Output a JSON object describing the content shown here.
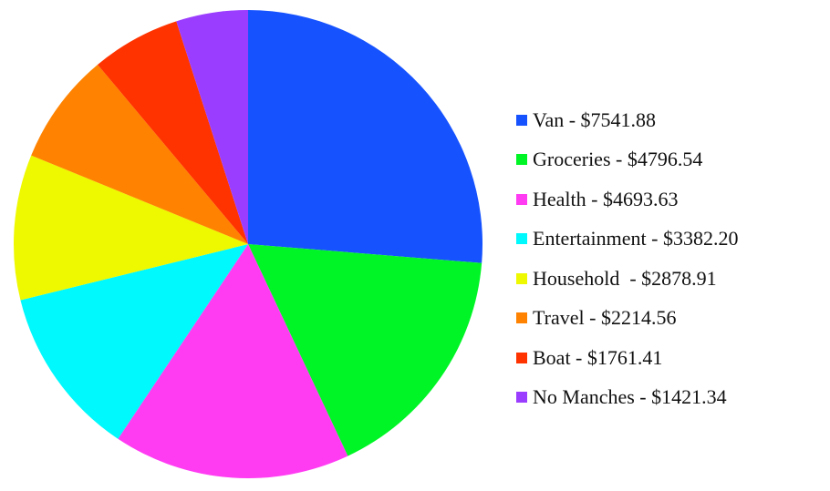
{
  "chart_data": {
    "type": "pie",
    "title": "",
    "start": "12 o'clock",
    "direction": "clockwise",
    "legend_position": "right",
    "slices": [
      {
        "label": "Van - $7541.88",
        "name": "Van",
        "value": 7541.88,
        "color": "#1653ff"
      },
      {
        "label": "Groceries - $4796.54",
        "name": "Groceries",
        "value": 4796.54,
        "color": "#00f526"
      },
      {
        "label": "Health - $4693.63",
        "name": "Health",
        "value": 4693.63,
        "color": "#ff3cf2"
      },
      {
        "label": "Entertainment - $3382.20",
        "name": "Entertainment",
        "value": 3382.2,
        "color": "#00f9fc"
      },
      {
        "label": "Household  - $2878.91",
        "name": "Household",
        "value": 2878.91,
        "color": "#eef900"
      },
      {
        "label": "Travel - $2214.56",
        "name": "Travel",
        "value": 2214.56,
        "color": "#ff8300"
      },
      {
        "label": "Boat - $1761.41",
        "name": "Boat",
        "value": 1761.41,
        "color": "#ff3300"
      },
      {
        "label": "No Manches - $1421.34",
        "name": "No Manches",
        "value": 1421.34,
        "color": "#9b3dff"
      }
    ]
  }
}
